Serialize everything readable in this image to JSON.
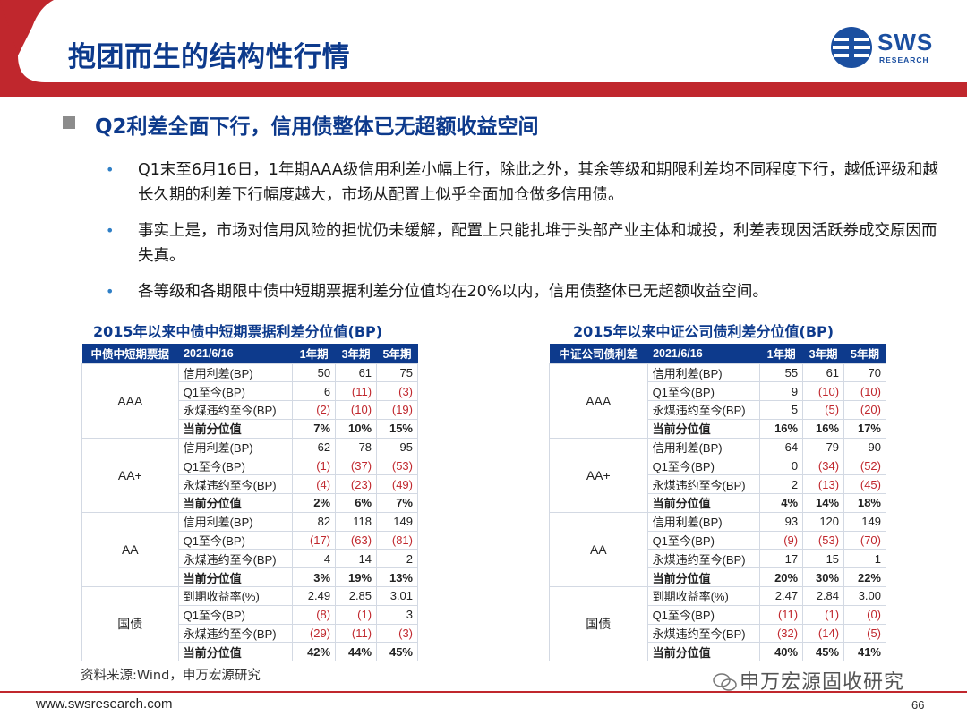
{
  "header": {
    "title": "抱团而生的结构性行情",
    "logo_text": "SWS",
    "logo_sub": "RESEARCH",
    "colors": {
      "red": "#c0272d",
      "navy": "#0d3a8c",
      "logo_blue": "#1b4fa0"
    }
  },
  "section": {
    "heading": "Q2利差全面下行，信用债整体已无超额收益空间"
  },
  "bullets": [
    {
      "text": "Q1末至6月16日，1年期AAA级信用利差小幅上行，除此之外，其余等级和期限利差均不同程度下行，越低评级和越长久期的利差下行幅度越大，市场从配置上似乎全面加仓做多信用债。"
    },
    {
      "text": "事实上是，市场对信用风险的担忧仍未缓解，配置上只能扎堆于头部产业主体和城投，利差表现因活跃券成交原因而失真。"
    },
    {
      "text": "各等级和各期限中债中短期票据利差分位值均在20%以内，信用债整体已无超额收益空间。"
    }
  ],
  "table_left": {
    "title": "2015年以来中债中短期票据利差分位值(BP)",
    "headers": [
      "中债中短期票据",
      "2021/6/16",
      "1年期",
      "3年期",
      "5年期"
    ],
    "groups": [
      {
        "grade": "AAA",
        "rows": [
          {
            "label": "信用利差(BP)",
            "v": [
              "50",
              "61",
              "75"
            ]
          },
          {
            "label": "Q1至今(BP)",
            "v": [
              "6",
              "(11)",
              "(3)"
            ]
          },
          {
            "label": "永煤违约至今(BP)",
            "v": [
              "(2)",
              "(10)",
              "(19)"
            ]
          },
          {
            "label": "当前分位值",
            "v": [
              "7%",
              "10%",
              "15%"
            ]
          }
        ]
      },
      {
        "grade": "AA+",
        "rows": [
          {
            "label": "信用利差(BP)",
            "v": [
              "62",
              "78",
              "95"
            ]
          },
          {
            "label": "Q1至今(BP)",
            "v": [
              "(1)",
              "(37)",
              "(53)"
            ]
          },
          {
            "label": "永煤违约至今(BP)",
            "v": [
              "(4)",
              "(23)",
              "(49)"
            ]
          },
          {
            "label": "当前分位值",
            "v": [
              "2%",
              "6%",
              "7%"
            ]
          }
        ]
      },
      {
        "grade": "AA",
        "rows": [
          {
            "label": "信用利差(BP)",
            "v": [
              "82",
              "118",
              "149"
            ]
          },
          {
            "label": "Q1至今(BP)",
            "v": [
              "(17)",
              "(63)",
              "(81)"
            ]
          },
          {
            "label": "永煤违约至今(BP)",
            "v": [
              "4",
              "14",
              "2"
            ]
          },
          {
            "label": "当前分位值",
            "v": [
              "3%",
              "19%",
              "13%"
            ]
          }
        ]
      },
      {
        "grade": "国债",
        "rows": [
          {
            "label": "到期收益率(%)",
            "v": [
              "2.49",
              "2.85",
              "3.01"
            ]
          },
          {
            "label": "Q1至今(BP)",
            "v": [
              "(8)",
              "(1)",
              "3"
            ]
          },
          {
            "label": "永煤违约至今(BP)",
            "v": [
              "(29)",
              "(11)",
              "(3)"
            ]
          },
          {
            "label": "当前分位值",
            "v": [
              "42%",
              "44%",
              "45%"
            ]
          }
        ]
      }
    ]
  },
  "table_right": {
    "title": "2015年以来中证公司债利差分位值(BP)",
    "headers": [
      "中证公司债利差",
      "2021/6/16",
      "1年期",
      "3年期",
      "5年期"
    ],
    "groups": [
      {
        "grade": "AAA",
        "rows": [
          {
            "label": "信用利差(BP)",
            "v": [
              "55",
              "61",
              "70"
            ]
          },
          {
            "label": "Q1至今(BP)",
            "v": [
              "9",
              "(10)",
              "(10)"
            ]
          },
          {
            "label": "永煤违约至今(BP)",
            "v": [
              "5",
              "(5)",
              "(20)"
            ]
          },
          {
            "label": "当前分位值",
            "v": [
              "16%",
              "16%",
              "17%"
            ]
          }
        ]
      },
      {
        "grade": "AA+",
        "rows": [
          {
            "label": "信用利差(BP)",
            "v": [
              "64",
              "79",
              "90"
            ]
          },
          {
            "label": "Q1至今(BP)",
            "v": [
              "0",
              "(34)",
              "(52)"
            ]
          },
          {
            "label": "永煤违约至今(BP)",
            "v": [
              "2",
              "(13)",
              "(45)"
            ]
          },
          {
            "label": "当前分位值",
            "v": [
              "4%",
              "14%",
              "18%"
            ]
          }
        ]
      },
      {
        "grade": "AA",
        "rows": [
          {
            "label": "信用利差(BP)",
            "v": [
              "93",
              "120",
              "149"
            ]
          },
          {
            "label": "Q1至今(BP)",
            "v": [
              "(9)",
              "(53)",
              "(70)"
            ]
          },
          {
            "label": "永煤违约至今(BP)",
            "v": [
              "17",
              "15",
              "1"
            ]
          },
          {
            "label": "当前分位值",
            "v": [
              "20%",
              "30%",
              "22%"
            ]
          }
        ]
      },
      {
        "grade": "国债",
        "rows": [
          {
            "label": "到期收益率(%)",
            "v": [
              "2.47",
              "2.84",
              "3.00"
            ]
          },
          {
            "label": "Q1至今(BP)",
            "v": [
              "(11)",
              "(1)",
              "(0)"
            ]
          },
          {
            "label": "永煤违约至今(BP)",
            "v": [
              "(32)",
              "(14)",
              "(5)"
            ]
          },
          {
            "label": "当前分位值",
            "v": [
              "40%",
              "45%",
              "41%"
            ]
          }
        ]
      }
    ]
  },
  "source": "资料来源:Wind，申万宏源研究",
  "wechat_label": "申万宏源固收研究",
  "footer": {
    "url": "www.swsresearch.com",
    "page": "66"
  }
}
